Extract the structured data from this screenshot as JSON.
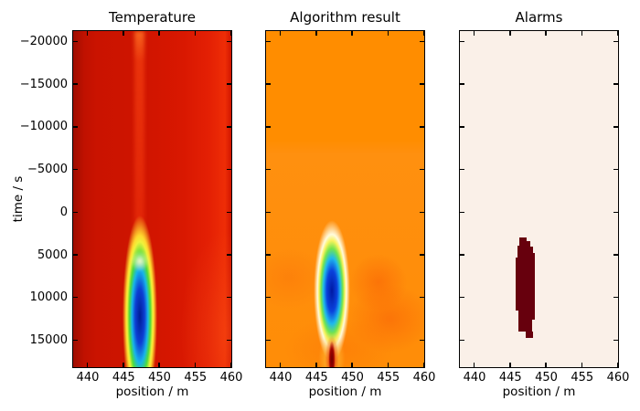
{
  "figure": {
    "panels": [
      {
        "title": "Temperature"
      },
      {
        "title": "Algorithm result"
      },
      {
        "title": "Alarms"
      }
    ],
    "axes": {
      "y_label": "time / s",
      "x_label": "position / m",
      "y_tick_labels": [
        "−20000",
        "−15000",
        "−10000",
        "−5000",
        "0",
        "5000",
        "10000",
        "15000"
      ],
      "x_tick_labels": [
        "440",
        "445",
        "450",
        "455",
        "460"
      ]
    },
    "colors": {
      "temperature_base": "#d21500",
      "temperature_dark_edge": "#9e0d00",
      "plume_core": "#001a96",
      "plume_halo_yellow": "#eef23c",
      "algorithm_base": "#ff8d00",
      "detection_core": "#0019a2",
      "detection_halo": "#fffbdd",
      "streak_core": "#700000",
      "alarms_background": "#faf0e8",
      "alarm_region": "#67000d",
      "panel_border": "#000000"
    }
  },
  "chart_data": {
    "type": "heatmap",
    "layout": "1x3 subplots sharing axes",
    "xlabel": "position / m",
    "ylabel": "time / s",
    "xlim": [
      437.5,
      462.5
    ],
    "ylim": [
      -21200,
      18400
    ],
    "y_axis_inverted_time_increases_downward": true,
    "x_ticks": [
      440,
      445,
      450,
      455,
      460
    ],
    "y_ticks": [
      -20000,
      -15000,
      -10000,
      -5000,
      0,
      5000,
      10000,
      15000
    ],
    "subplots": [
      {
        "title": "Temperature",
        "colormap_appearance": "red background, rainbow (jet-like) anomaly",
        "features": [
          {
            "name": "cold-anomaly-plume",
            "position_m": 447.5,
            "width_m": 2.5,
            "time_start_s": 1500,
            "time_end_s": 18400,
            "description": "narrow vertical plume: dark-blue core with cyan/green/yellow fringe, pale yellow-white tip at onset"
          },
          {
            "name": "warm-vertical-stripe",
            "position_m": 447.5,
            "time_start_s": -21200,
            "time_end_s": 1500,
            "description": "faint brighter red/orange stripe at same position before the event"
          }
        ]
      },
      {
        "title": "Algorithm result",
        "colormap_appearance": "orange background",
        "features": [
          {
            "name": "detection-blob",
            "position_m": 447.5,
            "width_m": 3,
            "time_start_s": 3000,
            "time_end_s": 12500,
            "description": "elongated dark-blue blob with cyan/green/yellow/white halo"
          },
          {
            "name": "hot-streak",
            "position_m": 447.5,
            "time_start_s": 14500,
            "time_end_s": 18400,
            "description": "dark-red streak with bright red and yellow-orange fringe reaching bottom edge"
          },
          {
            "name": "mottled-zone",
            "time_start_s": -9500,
            "time_end_s": 18400,
            "description": "slightly mottled warmer orange, reddish patches near the blob"
          }
        ]
      },
      {
        "title": "Alarms",
        "colormap_appearance": "pale cream background, dark maroon alarm mask",
        "features": [
          {
            "name": "alarm-region",
            "position_m_min": 445.5,
            "position_m_max": 449.0,
            "time_start_s": 3000,
            "time_end_s": 14700,
            "description": "jagged stepped vertical dark-maroon region"
          }
        ]
      }
    ]
  }
}
